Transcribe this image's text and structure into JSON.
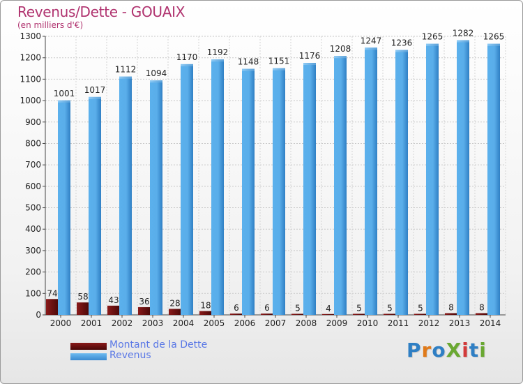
{
  "title": "Revenus/Dette - GOUAIX",
  "subtitle": "(en milliers d'€)",
  "logo_text": "ProXiti",
  "colors": {
    "title": "#b0336f",
    "dette": "#7a1414",
    "revenus": "#56a9e6",
    "axis_text": "#222222",
    "legend_text": "#5a78e6"
  },
  "legend": [
    {
      "label": "Montant de la Dette",
      "color": "#7a1414"
    },
    {
      "label": "Revenus",
      "color": "#56a9e6"
    }
  ],
  "chart_data": {
    "type": "bar",
    "title": "Revenus/Dette - GOUAIX",
    "subtitle": "(en milliers d'€)",
    "xlabel": "",
    "ylabel": "",
    "ylim": [
      0,
      1300
    ],
    "yticks": [
      0,
      100,
      200,
      300,
      400,
      500,
      600,
      700,
      800,
      900,
      1000,
      1100,
      1200,
      1300
    ],
    "grid": true,
    "legend_position": "bottom-left",
    "categories": [
      "2000",
      "2001",
      "2002",
      "2003",
      "2004",
      "2005",
      "2006",
      "2007",
      "2008",
      "2009",
      "2010",
      "2011",
      "2012",
      "2013",
      "2014"
    ],
    "series": [
      {
        "name": "Montant de la Dette",
        "values": [
          74,
          58,
          43,
          36,
          28,
          18,
          6,
          6,
          5,
          4,
          5,
          5,
          5,
          8,
          8
        ]
      },
      {
        "name": "Revenus",
        "values": [
          1001,
          1017,
          1112,
          1094,
          1170,
          1192,
          1148,
          1151,
          1176,
          1208,
          1247,
          1236,
          1265,
          1282,
          1265
        ]
      }
    ]
  }
}
